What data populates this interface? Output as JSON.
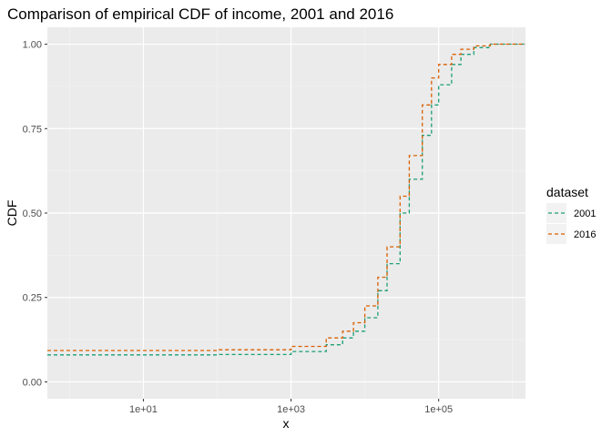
{
  "chart_data": {
    "type": "line",
    "title": "Comparison of empirical CDF of income, 2001 and 2016",
    "xlabel": "x",
    "ylabel": "CDF",
    "x_scale": "log10",
    "xlim": [
      0.5,
      1500000
    ],
    "ylim": [
      -0.05,
      1.05
    ],
    "x_ticks": [
      {
        "value": 10,
        "label": "1e+01"
      },
      {
        "value": 1000,
        "label": "1e+03"
      },
      {
        "value": 100000,
        "label": "1e+05"
      }
    ],
    "y_ticks": [
      {
        "value": 0,
        "label": "0.00"
      },
      {
        "value": 0.25,
        "label": "0.25"
      },
      {
        "value": 0.5,
        "label": "0.50"
      },
      {
        "value": 0.75,
        "label": "0.75"
      },
      {
        "value": 1,
        "label": "1.00"
      }
    ],
    "legend": {
      "title": "dataset",
      "position": "right"
    },
    "series": [
      {
        "name": "2001",
        "color": "#1b9e77",
        "x": [
          0.5,
          10,
          100,
          1000,
          3000,
          5000,
          7000,
          10000,
          15000,
          20000,
          30000,
          40000,
          60000,
          80000,
          100000,
          150000,
          200000,
          300000,
          500000
        ],
        "y": [
          0.08,
          0.08,
          0.081,
          0.09,
          0.11,
          0.13,
          0.15,
          0.19,
          0.27,
          0.35,
          0.5,
          0.6,
          0.73,
          0.82,
          0.88,
          0.94,
          0.97,
          0.99,
          1.0
        ]
      },
      {
        "name": "2016",
        "color": "#d95f02",
        "x": [
          0.5,
          10,
          100,
          1000,
          3000,
          5000,
          7000,
          10000,
          15000,
          20000,
          30000,
          40000,
          60000,
          80000,
          100000,
          150000,
          200000,
          300000,
          500000,
          1100000
        ],
        "y": [
          0.093,
          0.093,
          0.095,
          0.105,
          0.13,
          0.15,
          0.175,
          0.225,
          0.31,
          0.4,
          0.55,
          0.67,
          0.82,
          0.9,
          0.94,
          0.97,
          0.985,
          0.995,
          1.0,
          1.0
        ]
      }
    ]
  }
}
